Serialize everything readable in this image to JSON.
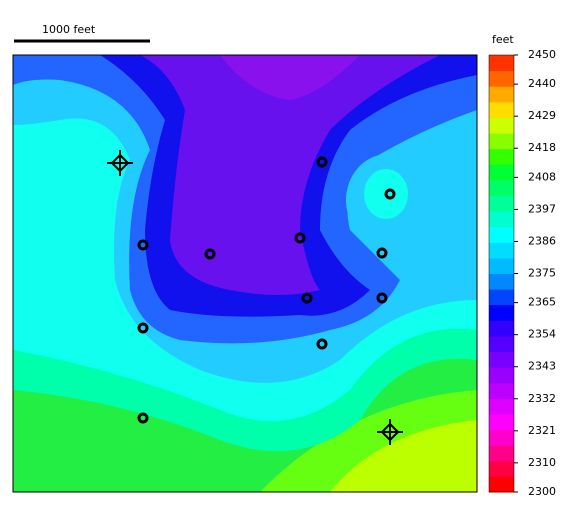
{
  "scale_bar": {
    "label": "1000 feet"
  },
  "colorbar": {
    "title": "feet",
    "clim": [
      2300,
      2450
    ],
    "ticks": [
      2450,
      2440,
      2429,
      2418,
      2408,
      2397,
      2386,
      2375,
      2365,
      2354,
      2343,
      2332,
      2321,
      2310,
      2300
    ],
    "colors": [
      "#ff0000",
      "#ff0044",
      "#ff0088",
      "#ff00cc",
      "#ff00ff",
      "#dd00ff",
      "#bb00ff",
      "#9900ff",
      "#7700ff",
      "#5500ff",
      "#3300ff",
      "#0000ff",
      "#0044ff",
      "#0088ff",
      "#00bbff",
      "#00ddff",
      "#00ffff",
      "#00ffcc",
      "#00ff99",
      "#00ff66",
      "#00ff33",
      "#33ff00",
      "#88ff00",
      "#ccff00",
      "#ffdd00",
      "#ffaa00",
      "#ff6600",
      "#ff3300"
    ]
  }
}
